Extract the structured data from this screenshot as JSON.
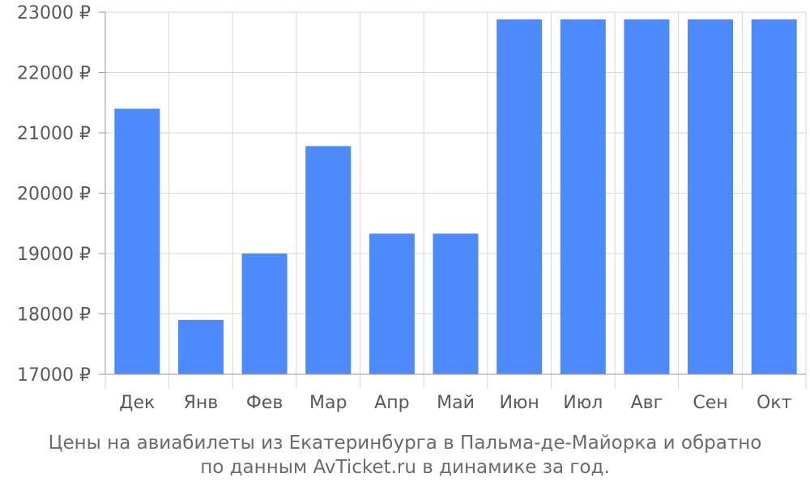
{
  "caption": {
    "line1": "Цены на авиабилеты из Екатеринбурга в Пальма-де-Майорка и обратно",
    "line2": "по данным AvTicket.ru в динамике за год."
  },
  "colors": {
    "bar": "#4d8afb",
    "grid": "#d9d9d9",
    "axis": "#999999",
    "text": "#595959"
  },
  "chart_data": {
    "type": "bar",
    "categories": [
      "Дек",
      "Янв",
      "Фев",
      "Мар",
      "Апр",
      "Май",
      "Июн",
      "Июл",
      "Авг",
      "Сен",
      "Окт"
    ],
    "values": [
      21400,
      17900,
      19000,
      20780,
      19330,
      19330,
      22880,
      22880,
      22880,
      22880,
      22880
    ],
    "ylim": [
      17000,
      23000
    ],
    "yticks": [
      17000,
      18000,
      19000,
      20000,
      21000,
      22000,
      23000
    ],
    "ytick_suffix": " ₽",
    "grid": true,
    "title": "Цены на авиабилеты из Екатеринбурга в Пальма-де-Майорка и обратно по данным AvTicket.ru в динамике за год.",
    "xlabel": "",
    "ylabel": ""
  }
}
